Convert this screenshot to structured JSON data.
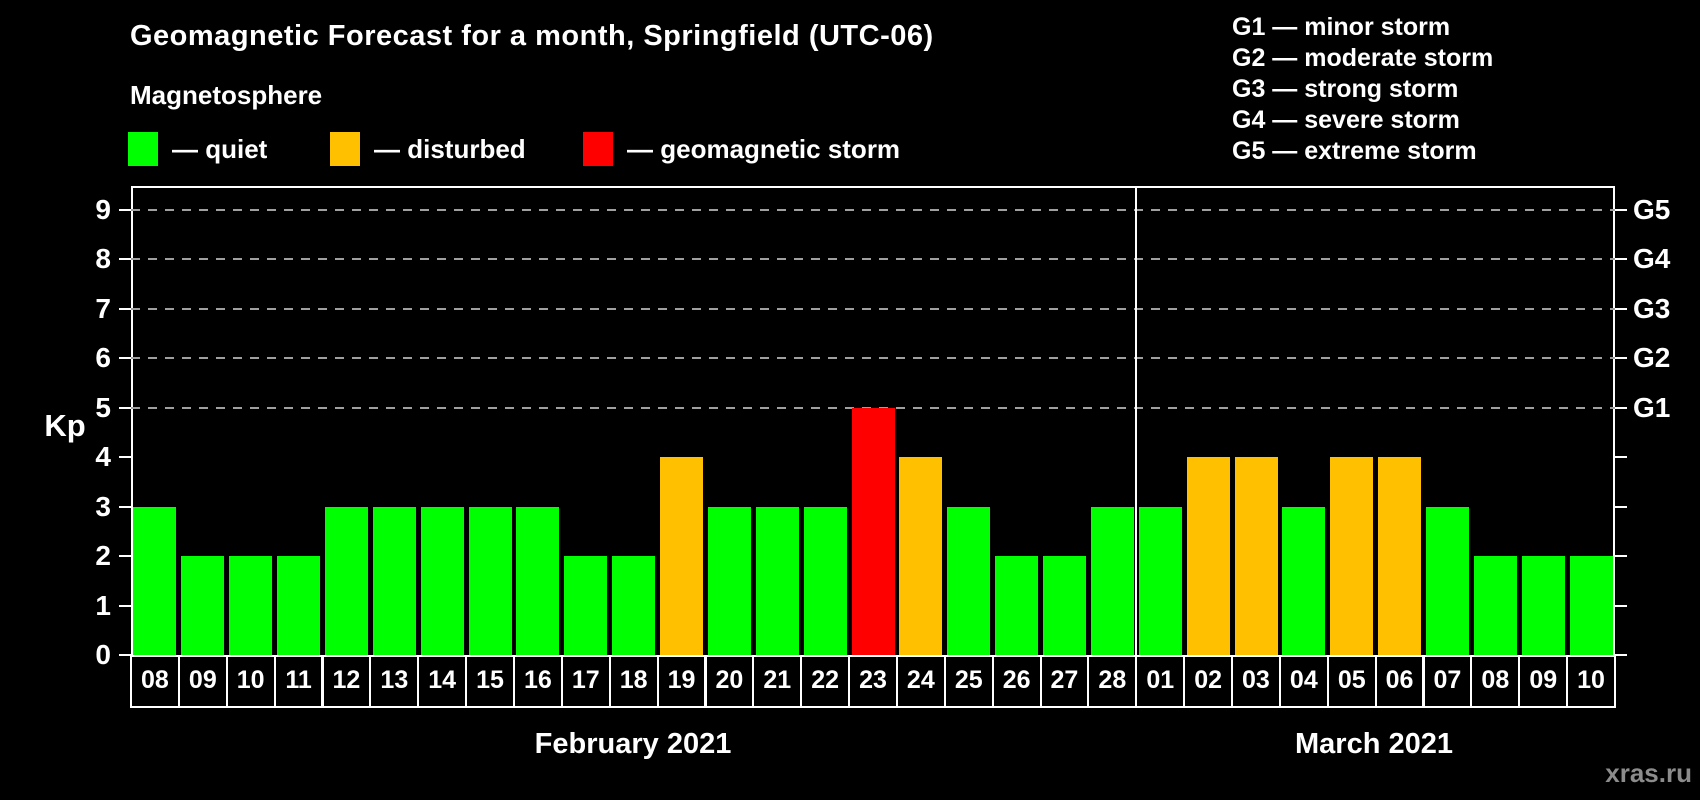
{
  "chart_data": {
    "type": "bar",
    "title": "Geomagnetic Forecast for a month, Springfield (UTC-06)",
    "legend_title": "Magnetosphere",
    "legend": [
      {
        "status": "quiet",
        "color": "#00ff00",
        "label": "— quiet"
      },
      {
        "status": "disturbed",
        "color": "#ffc000",
        "label": "— disturbed"
      },
      {
        "status": "storm",
        "color": "#ff0000",
        "label": "— geomagnetic storm"
      }
    ],
    "g_scale_legend": [
      "G1 — minor storm",
      "G2 — moderate storm",
      "G3 — strong storm",
      "G4 — severe storm",
      "G5 — extreme storm"
    ],
    "ylabel": "Kp",
    "ylim": [
      0,
      9
    ],
    "yticks": [
      0,
      1,
      2,
      3,
      4,
      5,
      6,
      7,
      8,
      9
    ],
    "right_axis": {
      "values": [
        5,
        6,
        7,
        8,
        9
      ],
      "labels": [
        "G1",
        "G2",
        "G3",
        "G4",
        "G5"
      ]
    },
    "gridlines_at": [
      5,
      6,
      7,
      8,
      9
    ],
    "grid": "dashed horizontal at storm levels only",
    "legend_position": "top",
    "colors": {
      "quiet": "#00ff00",
      "disturbed": "#ffc000",
      "storm": "#ff0000"
    },
    "months": [
      {
        "label": "February 2021",
        "days": [
          "08",
          "09",
          "10",
          "11",
          "12",
          "13",
          "14",
          "15",
          "16",
          "17",
          "18",
          "19",
          "20",
          "21",
          "22",
          "23",
          "24",
          "25",
          "26",
          "27",
          "28"
        ],
        "values": [
          3,
          2,
          2,
          2,
          3,
          3,
          3,
          3,
          3,
          2,
          2,
          4,
          3,
          3,
          3,
          5,
          4,
          3,
          2,
          2,
          3
        ],
        "statuses": [
          "quiet",
          "quiet",
          "quiet",
          "quiet",
          "quiet",
          "quiet",
          "quiet",
          "quiet",
          "quiet",
          "quiet",
          "quiet",
          "disturbed",
          "quiet",
          "quiet",
          "quiet",
          "storm",
          "disturbed",
          "quiet",
          "quiet",
          "quiet",
          "quiet"
        ]
      },
      {
        "label": "March 2021",
        "days": [
          "01",
          "02",
          "03",
          "04",
          "05",
          "06",
          "07",
          "08",
          "09",
          "10"
        ],
        "values": [
          3,
          4,
          4,
          3,
          4,
          4,
          3,
          2,
          2,
          2
        ],
        "statuses": [
          "quiet",
          "disturbed",
          "disturbed",
          "quiet",
          "disturbed",
          "disturbed",
          "quiet",
          "quiet",
          "quiet",
          "quiet"
        ]
      }
    ],
    "watermark": "xras.ru"
  }
}
